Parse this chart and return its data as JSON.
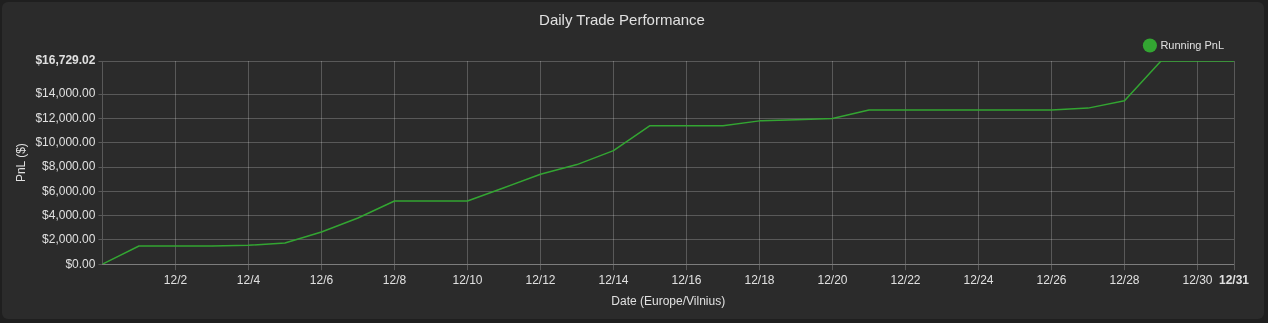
{
  "chart_data": {
    "type": "line",
    "title": "Daily Trade Performance",
    "xlabel": "Date (Europe/Vilnius)",
    "ylabel": "PnL ($)",
    "x": [
      "--11-30",
      "--12-01",
      "--12-02",
      "--12-03",
      "--12-04",
      "--12-05",
      "--12-06",
      "--12-07",
      "--12-08",
      "--12-09",
      "--12-10",
      "--12-11",
      "--12-12",
      "--12-13",
      "--12-14",
      "--12-15",
      "--12-16",
      "--12-17",
      "--12-18",
      "--12-19",
      "--12-20",
      "--12-21",
      "--12-22",
      "--12-23",
      "--12-24",
      "--12-25",
      "--12-26",
      "--12-27",
      "--12-28",
      "--12-29",
      "--12-30",
      "--12-31"
    ],
    "series": [
      {
        "name": "Running PnL",
        "color": "#33a532",
        "values": [
          0,
          1500,
          1500,
          1500,
          1550,
          1750,
          2650,
          3800,
          5200,
          5200,
          5200,
          6300,
          7400,
          8200,
          9350,
          11400,
          11400,
          11400,
          11800,
          11900,
          12000,
          12700,
          12700,
          12700,
          12700,
          12700,
          12700,
          12850,
          13450,
          16729.02,
          16729.02,
          16729.02
        ]
      }
    ],
    "xlim": [
      "--11-30",
      "--12-31"
    ],
    "xticks": [
      {
        "value": "--12-02",
        "label": "12/2"
      },
      {
        "value": "--12-04",
        "label": "12/4"
      },
      {
        "value": "--12-06",
        "label": "12/6"
      },
      {
        "value": "--12-08",
        "label": "12/8"
      },
      {
        "value": "--12-10",
        "label": "12/10"
      },
      {
        "value": "--12-12",
        "label": "12/12"
      },
      {
        "value": "--12-14",
        "label": "12/14"
      },
      {
        "value": "--12-16",
        "label": "12/16"
      },
      {
        "value": "--12-18",
        "label": "12/18"
      },
      {
        "value": "--12-20",
        "label": "12/20"
      },
      {
        "value": "--12-22",
        "label": "12/22"
      },
      {
        "value": "--12-24",
        "label": "12/24"
      },
      {
        "value": "--12-26",
        "label": "12/26"
      },
      {
        "value": "--12-28",
        "label": "12/28"
      },
      {
        "value": "--12-30",
        "label": "12/30"
      },
      {
        "value": "--12-31",
        "label": "12/31"
      }
    ],
    "ylim": [
      0,
      16729.02
    ],
    "yticks": [
      {
        "value": 0,
        "label": "$0.00"
      },
      {
        "value": 2000,
        "label": "$2,000.00"
      },
      {
        "value": 4000,
        "label": "$4,000.00"
      },
      {
        "value": 6000,
        "label": "$6,000.00"
      },
      {
        "value": 8000,
        "label": "$8,000.00"
      },
      {
        "value": 10000,
        "label": "$10,000.00"
      },
      {
        "value": 12000,
        "label": "$12,000.00"
      },
      {
        "value": 14000,
        "label": "$14,000.00"
      },
      {
        "value": 16729.02,
        "label": "$16,729.02"
      }
    ],
    "grid": true,
    "legend": "top right",
    "marker": "none",
    "line_style": "solid"
  }
}
